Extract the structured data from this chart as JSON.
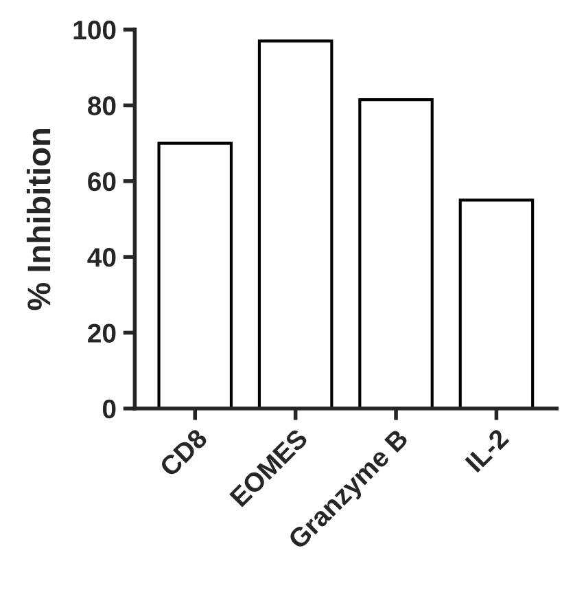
{
  "chart_data": {
    "type": "bar",
    "ylabel": "% Inhibition",
    "categories": [
      "CD8",
      "EOMES",
      "Granzyme B",
      "IL-2"
    ],
    "values": [
      70,
      97,
      81.5,
      55
    ],
    "color": "#ffffff",
    "ylim": [
      0,
      100
    ],
    "yticks": [
      0,
      20,
      40,
      60,
      80,
      100
    ],
    "grid": false,
    "legend": false
  }
}
